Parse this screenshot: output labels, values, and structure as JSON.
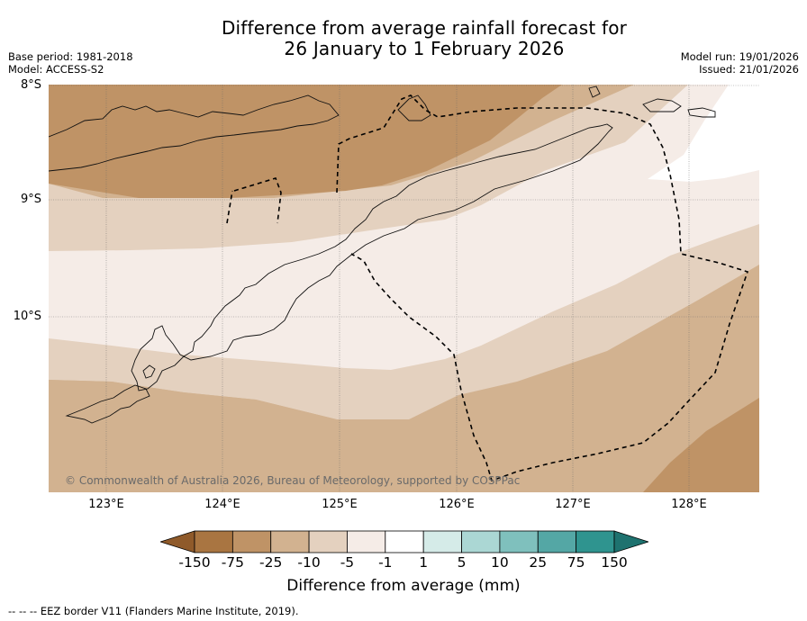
{
  "title": {
    "line1": "Difference from average rainfall forecast for",
    "line2": "26 January to 1 February 2026"
  },
  "meta": {
    "base_period": "Base period: 1981-2018",
    "model": "Model: ACCESS-S2",
    "model_run": "Model run: 19/01/2026",
    "issued": "Issued: 21/01/2026"
  },
  "axes": {
    "latitudes": [
      "8°S",
      "9°S",
      "10°S"
    ],
    "longitudes": [
      "123°E",
      "124°E",
      "125°E",
      "126°E",
      "127°E",
      "128°E"
    ]
  },
  "copyright": "© Commonwealth of Australia 2026, Bureau of Meteorology, supported by COSPPac",
  "colorbar": {
    "title": "Difference from average (mm)",
    "tick_labels": [
      "-150",
      "-75",
      "-25",
      "-10",
      "-5",
      "-1",
      "1",
      "5",
      "10",
      "25",
      "75",
      "150"
    ],
    "colors": [
      "#8f5a2a",
      "#a97541",
      "#bf9366",
      "#d2b290",
      "#e4d1bf",
      "#f5ece7",
      "#ffffff",
      "#d5ebe8",
      "#abd7d4",
      "#7fc0bd",
      "#54a7a5",
      "#2f948f",
      "#1e726f"
    ]
  },
  "footnote": "--  --  -- EEZ border V11 (Flanders Marine Institute, 2019)."
}
